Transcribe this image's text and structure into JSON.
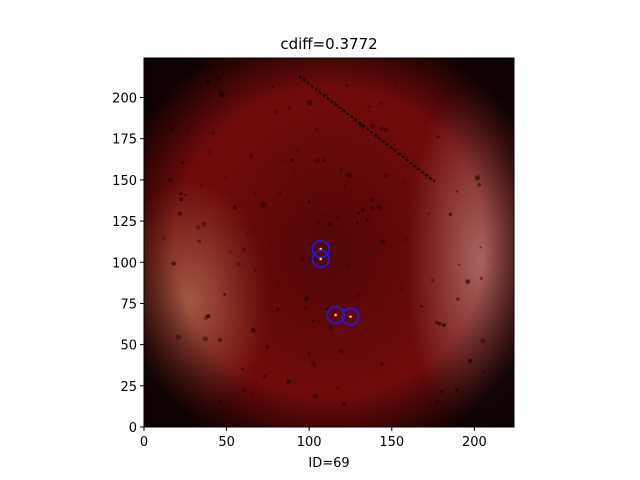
{
  "chart_data": {
    "type": "image",
    "title": "cdiff=0.3772",
    "xlabel": "ID=69",
    "ylabel": "",
    "xlim": [
      0,
      224
    ],
    "ylim": [
      0,
      224
    ],
    "x_ticks": [
      0,
      50,
      100,
      150,
      200
    ],
    "y_ticks": [
      0,
      25,
      50,
      75,
      100,
      125,
      150,
      175,
      200
    ],
    "grid": false,
    "image_description_colors": {
      "base": "#6e0a0a",
      "dark": "#3a0404",
      "light_patch": "#a86050",
      "marker_ring": "#2a18c8",
      "marker_center": "#f0d040"
    },
    "markers": [
      {
        "x": 107,
        "y": 108,
        "r": 5
      },
      {
        "x": 107,
        "y": 102,
        "r": 5
      },
      {
        "x": 116,
        "y": 68,
        "r": 5
      },
      {
        "x": 125,
        "y": 67,
        "r": 5
      }
    ],
    "ruler_line": {
      "x1": 94,
      "y1": 213,
      "x2": 176,
      "y2": 149
    }
  }
}
